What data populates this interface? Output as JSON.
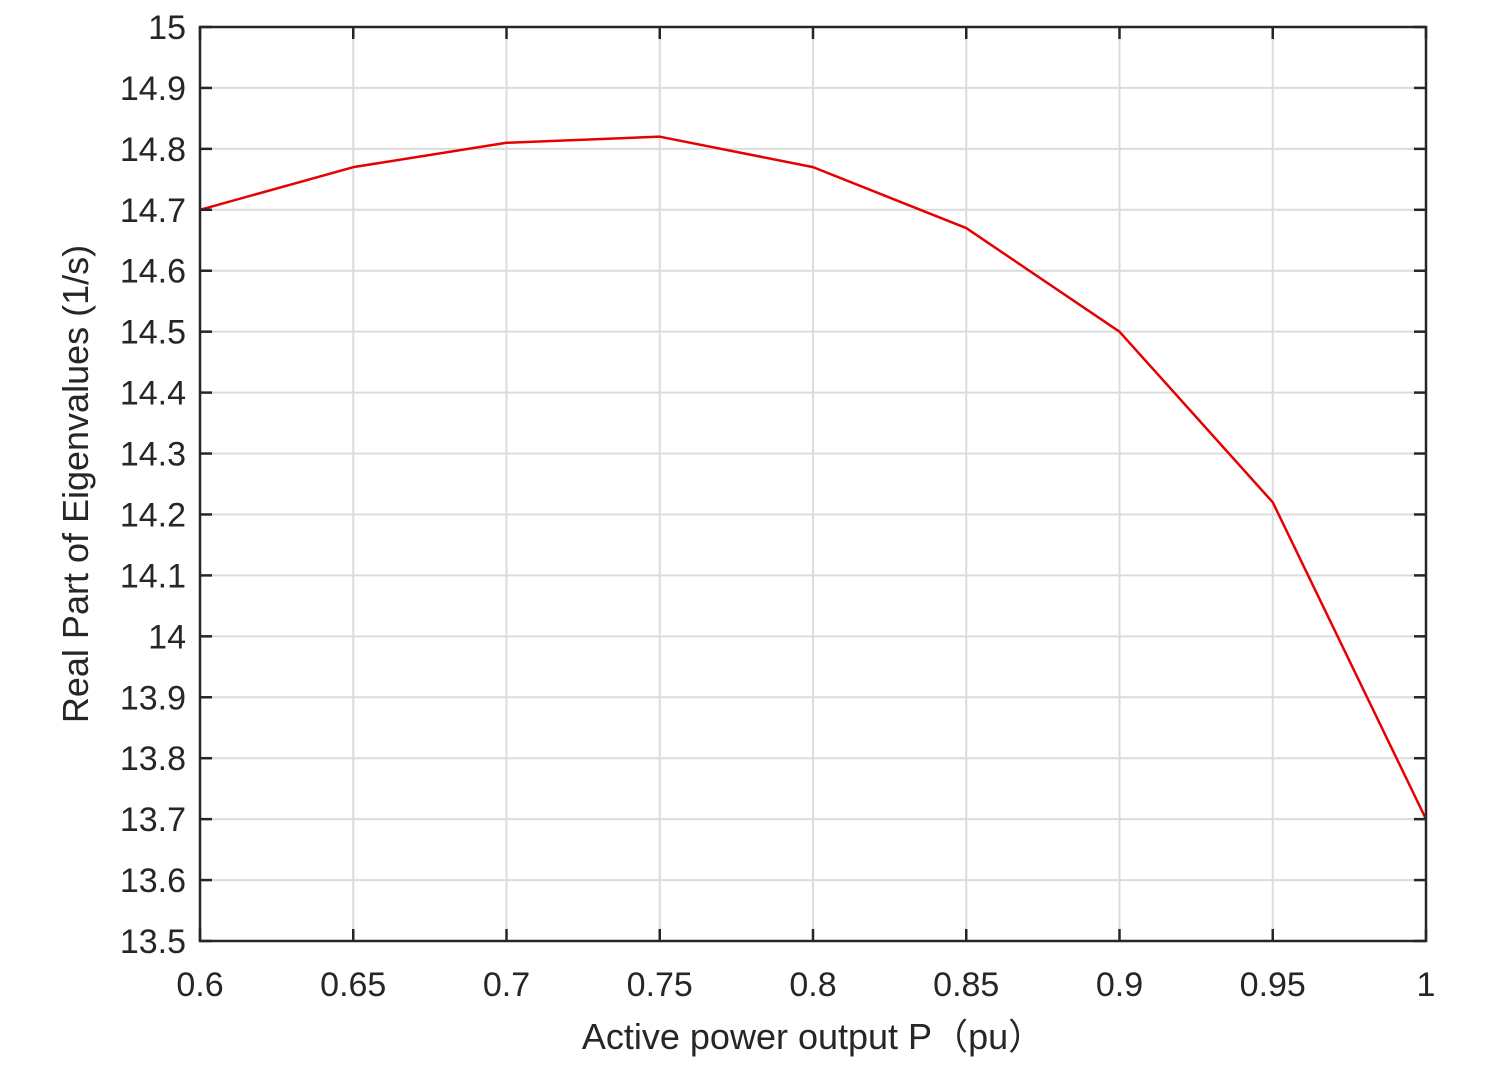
{
  "chart_data": {
    "type": "line",
    "xlabel": "Active power output P（pu）",
    "ylabel": "Real Part of  Eigenvalues (1/s)",
    "xlim": [
      0.6,
      1
    ],
    "ylim": [
      13.5,
      15
    ],
    "xticks": [
      0.6,
      0.65,
      0.7,
      0.75,
      0.8,
      0.85,
      0.9,
      0.95,
      1
    ],
    "xtick_labels": [
      "0.6",
      "0.65",
      "0.7",
      "0.75",
      "0.8",
      "0.85",
      "0.9",
      "0.95",
      "1"
    ],
    "yticks": [
      13.5,
      13.6,
      13.7,
      13.8,
      13.9,
      14,
      14.1,
      14.2,
      14.3,
      14.4,
      14.5,
      14.6,
      14.7,
      14.8,
      14.9,
      15
    ],
    "ytick_labels": [
      "13.5",
      "13.6",
      "13.7",
      "13.8",
      "13.9",
      "14",
      "14.1",
      "14.2",
      "14.3",
      "14.4",
      "14.5",
      "14.6",
      "14.7",
      "14.8",
      "14.9",
      "15"
    ],
    "grid": true,
    "series": [
      {
        "color": "#e60000",
        "x": [
          0.6,
          0.65,
          0.7,
          0.75,
          0.8,
          0.85,
          0.9,
          0.95,
          1
        ],
        "y": [
          14.7,
          14.77,
          14.81,
          14.82,
          14.77,
          14.67,
          14.5,
          14.22,
          13.7
        ]
      }
    ]
  }
}
